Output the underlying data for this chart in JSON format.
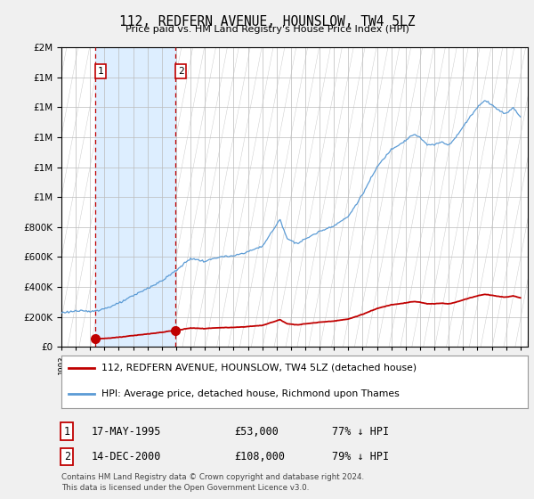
{
  "title": "112, REDFERN AVENUE, HOUNSLOW, TW4 5LZ",
  "subtitle": "Price paid vs. HM Land Registry's House Price Index (HPI)",
  "ytick_values": [
    0,
    200000,
    400000,
    600000,
    800000,
    1000000,
    1200000,
    1400000,
    1600000,
    1800000,
    2000000
  ],
  "ylim": [
    0,
    2000000
  ],
  "xmin": 1993.0,
  "xmax": 2025.5,
  "hpi_color": "#5b9bd5",
  "price_color": "#c00000",
  "sale1_date": 1995.37,
  "sale1_price": 53000,
  "sale2_date": 2000.96,
  "sale2_price": 108000,
  "legend_line1": "112, REDFERN AVENUE, HOUNSLOW, TW4 5LZ (detached house)",
  "legend_line2": "HPI: Average price, detached house, Richmond upon Thames",
  "table_row1": [
    "1",
    "17-MAY-1995",
    "£53,000",
    "77% ↓ HPI"
  ],
  "table_row2": [
    "2",
    "14-DEC-2000",
    "£108,000",
    "79% ↓ HPI"
  ],
  "footer": "Contains HM Land Registry data © Crown copyright and database right 2024.\nThis data is licensed under the Open Government Licence v3.0.",
  "bg_color": "#f0f0f0",
  "shade_color": "#ddeeff",
  "hatch_bg_color": "#e8e8e8"
}
